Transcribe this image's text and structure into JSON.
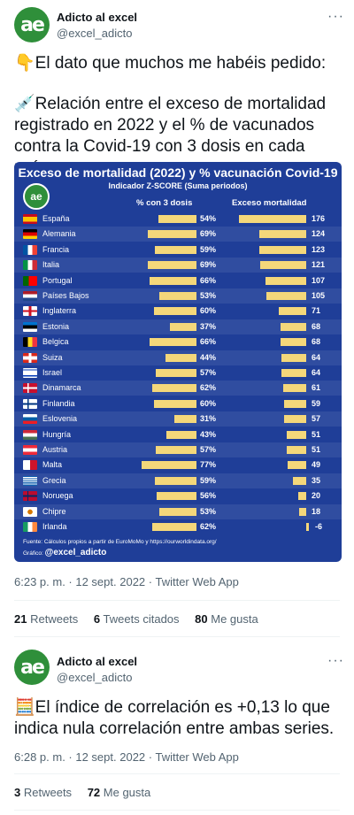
{
  "tweet1": {
    "name": "Adicto al excel",
    "handle": "@excel_adicto",
    "more": "···",
    "line1": "👇El dato que muchos me habéis pedido:",
    "line2": "💉Relación entre el exceso de mortalidad registrado en 2022 y el % de vacunados contra la Covid-19 con 3 dosis en cada país.",
    "timestamp": "6:23 p. m. · 12 sept. 2022 · Twitter Web App",
    "retweets": "21",
    "retweets_label": "Retweets",
    "quotes": "6",
    "quotes_label": "Tweets citados",
    "likes": "80",
    "likes_label": "Me gusta"
  },
  "tweet2": {
    "name": "Adicto al excel",
    "handle": "@excel_adicto",
    "more": "···",
    "text": "🧮El índice de correlación es +0,13 lo que indica nula correlación entre ambas series.",
    "timestamp": "6:28 p. m. · 12 sept. 2022 · Twitter Web App",
    "retweets": "3",
    "retweets_label": "Retweets",
    "likes": "72",
    "likes_label": "Me gusta"
  },
  "avatar_text": "ae",
  "chart_data": {
    "type": "bar",
    "title": "Exceso de mortalidad (2022) y % vacunación Covid-19",
    "subtitle": "Indicador Z-SCORE (Suma periodos)",
    "col_vacc": "% con 3 dosis",
    "col_mort": "Exceso mortalidad",
    "source": "Fuente: Cálculos propios a partir de EuroMoMo y https://ourworldindata.org/",
    "graphic_label": "Gráfico:",
    "graphic_handle": "@excel_adicto",
    "bar_color": "#f4d77a",
    "background": "#1f3e98",
    "rows": [
      {
        "country": "España",
        "vacc": "54%",
        "vacc_v": 54,
        "mort": "176",
        "mort_v": 176,
        "flag": "es"
      },
      {
        "country": "Alemania",
        "vacc": "69%",
        "vacc_v": 69,
        "mort": "124",
        "mort_v": 124,
        "flag": "de"
      },
      {
        "country": "Francia",
        "vacc": "59%",
        "vacc_v": 59,
        "mort": "123",
        "mort_v": 123,
        "flag": "fr"
      },
      {
        "country": "Italia",
        "vacc": "69%",
        "vacc_v": 69,
        "mort": "121",
        "mort_v": 121,
        "flag": "it"
      },
      {
        "country": "Portugal",
        "vacc": "66%",
        "vacc_v": 66,
        "mort": "107",
        "mort_v": 107,
        "flag": "pt"
      },
      {
        "country": "Países Bajos",
        "vacc": "53%",
        "vacc_v": 53,
        "mort": "105",
        "mort_v": 105,
        "flag": "nl"
      },
      {
        "country": "Inglaterra",
        "vacc": "60%",
        "vacc_v": 60,
        "mort": "71",
        "mort_v": 71,
        "flag": "en"
      },
      {
        "country": "Estonia",
        "vacc": "37%",
        "vacc_v": 37,
        "mort": "68",
        "mort_v": 68,
        "flag": "ee"
      },
      {
        "country": "Belgica",
        "vacc": "66%",
        "vacc_v": 66,
        "mort": "68",
        "mort_v": 68,
        "flag": "be"
      },
      {
        "country": "Suiza",
        "vacc": "44%",
        "vacc_v": 44,
        "mort": "64",
        "mort_v": 64,
        "flag": "ch"
      },
      {
        "country": "Israel",
        "vacc": "57%",
        "vacc_v": 57,
        "mort": "64",
        "mort_v": 64,
        "flag": "il"
      },
      {
        "country": "Dinamarca",
        "vacc": "62%",
        "vacc_v": 62,
        "mort": "61",
        "mort_v": 61,
        "flag": "dk"
      },
      {
        "country": "Finlandia",
        "vacc": "60%",
        "vacc_v": 60,
        "mort": "59",
        "mort_v": 59,
        "flag": "fi"
      },
      {
        "country": "Eslovenia",
        "vacc": "31%",
        "vacc_v": 31,
        "mort": "57",
        "mort_v": 57,
        "flag": "si"
      },
      {
        "country": "Hungría",
        "vacc": "43%",
        "vacc_v": 43,
        "mort": "51",
        "mort_v": 51,
        "flag": "hu"
      },
      {
        "country": "Austria",
        "vacc": "57%",
        "vacc_v": 57,
        "mort": "51",
        "mort_v": 51,
        "flag": "at"
      },
      {
        "country": "Malta",
        "vacc": "77%",
        "vacc_v": 77,
        "mort": "49",
        "mort_v": 49,
        "flag": "mt"
      },
      {
        "country": "Grecia",
        "vacc": "59%",
        "vacc_v": 59,
        "mort": "35",
        "mort_v": 35,
        "flag": "gr"
      },
      {
        "country": "Noruega",
        "vacc": "56%",
        "vacc_v": 56,
        "mort": "20",
        "mort_v": 20,
        "flag": "no"
      },
      {
        "country": "Chipre",
        "vacc": "53%",
        "vacc_v": 53,
        "mort": "18",
        "mort_v": 18,
        "flag": "cy"
      },
      {
        "country": "Irlanda",
        "vacc": "62%",
        "vacc_v": 62,
        "mort": "-6",
        "mort_v": -6,
        "flag": "ie"
      }
    ]
  }
}
